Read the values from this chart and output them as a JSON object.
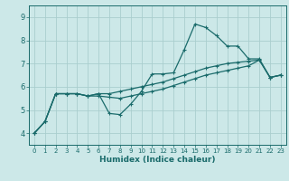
{
  "title": "",
  "xlabel": "Humidex (Indice chaleur)",
  "background_color": "#cce8e8",
  "grid_color": "#aacece",
  "line_color": "#1a6b6b",
  "xlim": [
    -0.5,
    23.5
  ],
  "ylim": [
    3.5,
    9.5
  ],
  "yticks": [
    4,
    5,
    6,
    7,
    8,
    9
  ],
  "xticks": [
    0,
    1,
    2,
    3,
    4,
    5,
    6,
    7,
    8,
    9,
    10,
    11,
    12,
    13,
    14,
    15,
    16,
    17,
    18,
    19,
    20,
    21,
    22,
    23
  ],
  "series": [
    [
      4.0,
      4.5,
      5.7,
      5.7,
      5.7,
      5.6,
      5.7,
      4.85,
      4.8,
      5.25,
      5.8,
      6.55,
      6.55,
      6.6,
      7.6,
      8.7,
      8.55,
      8.2,
      7.75,
      7.75,
      7.2,
      7.2,
      6.4,
      6.5
    ],
    [
      4.0,
      4.5,
      5.7,
      5.7,
      5.7,
      5.6,
      5.7,
      5.7,
      5.8,
      5.9,
      6.0,
      6.1,
      6.2,
      6.35,
      6.5,
      6.65,
      6.8,
      6.9,
      7.0,
      7.05,
      7.1,
      7.15,
      6.4,
      6.5
    ],
    [
      4.0,
      4.5,
      5.7,
      5.7,
      5.7,
      5.6,
      5.6,
      5.55,
      5.5,
      5.6,
      5.7,
      5.8,
      5.9,
      6.05,
      6.2,
      6.35,
      6.5,
      6.6,
      6.7,
      6.8,
      6.9,
      7.15,
      6.4,
      6.5
    ]
  ],
  "xlabel_fontsize": 6.5,
  "xlabel_fontweight": "bold",
  "tick_fontsize_x": 5,
  "tick_fontsize_y": 6,
  "linewidth": 0.9,
  "markersize": 2.5,
  "markeredgewidth": 0.8
}
